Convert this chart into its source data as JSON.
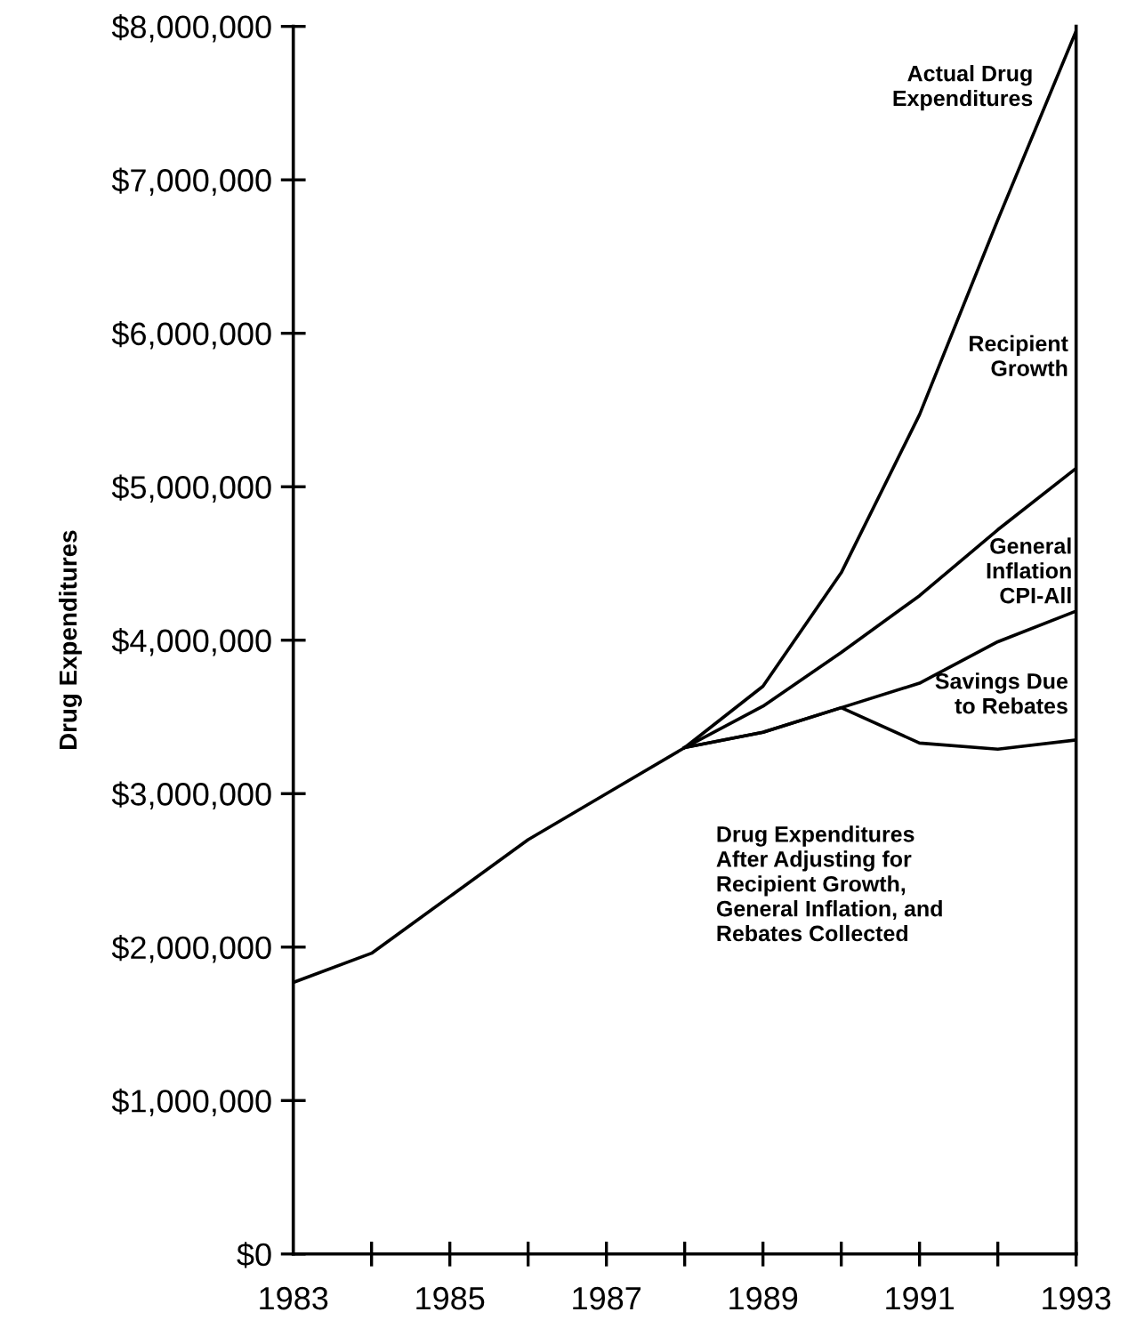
{
  "chart_data": {
    "type": "line",
    "ylabel": "Drug Expenditures",
    "x": [
      1983,
      1984,
      1985,
      1986,
      1987,
      1988,
      1989,
      1990,
      1991,
      1992,
      1993
    ],
    "series": [
      {
        "color": "#000000",
        "values": [
          1770000,
          1960000,
          2330000,
          2700000,
          3000000,
          3300000,
          3700000,
          4440000,
          5470000,
          6740000,
          7970000
        ]
      },
      {
        "color": "#000000",
        "values": [
          null,
          null,
          null,
          null,
          null,
          3300000,
          3570000,
          3920000,
          4290000,
          4720000,
          5120000
        ]
      },
      {
        "color": "#000000",
        "values": [
          null,
          null,
          null,
          null,
          null,
          3300000,
          3400000,
          3560000,
          3720000,
          3990000,
          4190000
        ]
      },
      {
        "color": "#000000",
        "values": [
          null,
          null,
          null,
          null,
          null,
          3300000,
          3400000,
          3560000,
          3330000,
          3290000,
          3350000
        ]
      }
    ],
    "xlim": [
      1983,
      1993
    ],
    "ylim": [
      0,
      8000000
    ],
    "xticks": [
      1983,
      {
        "value": 1984,
        "label": null
      },
      1985,
      {
        "value": 1986,
        "label": null
      },
      1987,
      {
        "value": 1988,
        "label": null
      },
      1989,
      {
        "value": 1990,
        "label": null
      },
      1991,
      {
        "value": 1992,
        "label": null
      },
      1993
    ],
    "yticks": [
      {
        "value": 0,
        "label": "$0"
      },
      {
        "value": 1000000,
        "label": "$1,000,000"
      },
      {
        "value": 2000000,
        "label": "$2,000,000"
      },
      {
        "value": 3000000,
        "label": "$3,000,000"
      },
      {
        "value": 4000000,
        "label": "$4,000,000"
      },
      {
        "value": 5000000,
        "label": "$5,000,000"
      },
      {
        "value": 6000000,
        "label": "$6,000,000"
      },
      {
        "value": 7000000,
        "label": "$7,000,000"
      },
      {
        "value": 8000000,
        "label": "$8,000,000"
      }
    ],
    "marker": "none",
    "line_style": "solid",
    "annotations": [
      "Actual Drug\nExpenditures",
      "Recipient\nGrowth",
      "General\nInflation\nCPI-All",
      "Savings Due\nto Rebates",
      "Drug Expenditures\nAfter Adjusting for\nRecipient Growth,\nGeneral Inflation, and\nRebates Collected"
    ]
  }
}
